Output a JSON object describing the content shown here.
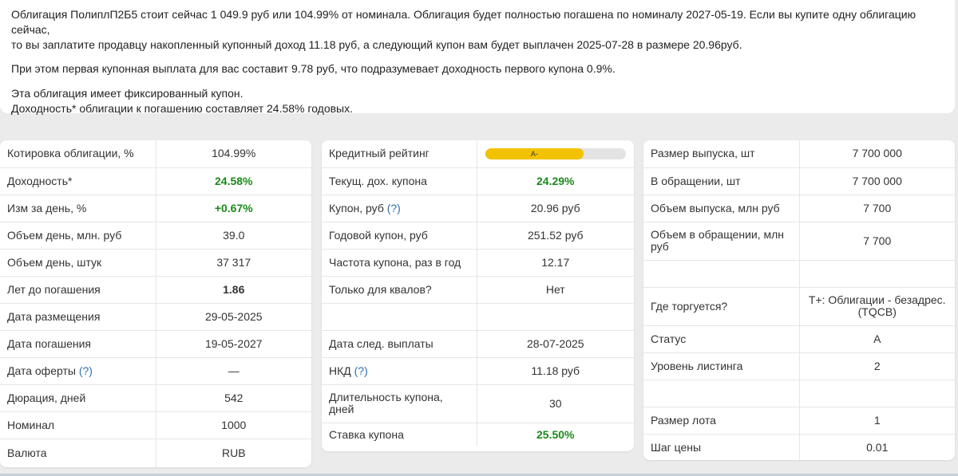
{
  "summary": {
    "line1": "Облигация ПолиплП2Б5 стоит сейчас 1 049.9 руб или 104.99% от номинала. Облигация будет полностью погашена по номиналу 2027-05-19. Если вы купите одну облигацию сейчас,",
    "line2": "то вы заплатите продавцу накопленный купонный доход 11.18 руб, а следующий купон вам будет выплачен 2025-07-28 в размере 20.96руб.",
    "line3": "При этом первая купонная выплата для вас составит 9.78 руб, что подразумевает доходность первого купона 0.9%.",
    "line4": "Эта облигация имеет фиксированный купон.",
    "line5": "Доходность* облигации к погашению составляет 24.58% годовых."
  },
  "colors": {
    "green": "#1a8a1a",
    "rating_fill": "#f2c200",
    "help_link": "#2f6fb0"
  },
  "help_mark": "(?)",
  "card1": [
    {
      "label": "Котировка облигации, %",
      "value": "104.99%",
      "style": ""
    },
    {
      "label": "Доходность*",
      "value": "24.58%",
      "style": "green"
    },
    {
      "label": "Изм за день, %",
      "value": "+0.67%",
      "style": "green"
    },
    {
      "label": "Объем день, млн. руб",
      "value": "39.0",
      "style": ""
    },
    {
      "label": "Объем день, штук",
      "value": "37 317",
      "style": ""
    },
    {
      "label": "Лет до погашения",
      "value": "1.86",
      "style": "bold"
    },
    {
      "label": "Дата размещения",
      "value": "29-05-2025",
      "style": ""
    },
    {
      "label": "Дата погашения",
      "value": "19-05-2027",
      "style": ""
    },
    {
      "label": "Дата оферты",
      "value": "—",
      "style": "",
      "help": true
    },
    {
      "label": "Дюрация, дней",
      "value": "542",
      "style": ""
    },
    {
      "label": "Номинал",
      "value": "1000",
      "style": ""
    },
    {
      "label": "Валюта",
      "value": "RUB",
      "style": ""
    }
  ],
  "card2": [
    {
      "label": "Кредитный рейтинг",
      "value": "A-",
      "rating": true,
      "rating_fill_fraction": 0.7
    },
    {
      "label": "Текущ. дох. купона",
      "value": "24.29%",
      "style": "green"
    },
    {
      "label": "Купон, руб",
      "value": "20.96 руб",
      "style": "",
      "help": true
    },
    {
      "label": "Годовой купон, руб",
      "value": "251.52 руб",
      "style": ""
    },
    {
      "label": "Частота купона, раз в год",
      "value": "12.17",
      "style": ""
    },
    {
      "label": "Только для квалов?",
      "value": "Нет",
      "style": ""
    },
    {
      "label": "",
      "value": "",
      "style": ""
    },
    {
      "label": "Дата след. выплаты",
      "value": "28-07-2025",
      "style": ""
    },
    {
      "label": "НКД",
      "value": "11.18 руб",
      "style": "",
      "help": true
    },
    {
      "label": "Длительность купона, дней",
      "value": "30",
      "style": ""
    },
    {
      "label": "Ставка купона",
      "value": "25.50%",
      "style": "green"
    }
  ],
  "card3": [
    {
      "label": "Размер выпуска, шт",
      "value": "7 700 000",
      "style": ""
    },
    {
      "label": "В обращении, шт",
      "value": "7 700 000",
      "style": ""
    },
    {
      "label": "Объем выпуска, млн руб",
      "value": "7 700",
      "style": ""
    },
    {
      "label": "Объем в обращении, млн руб",
      "value": "7 700",
      "style": ""
    },
    {
      "label": "",
      "value": "",
      "style": ""
    },
    {
      "label": "Где торгуется?",
      "value": "Т+: Облигации - безадрес. (TQCB)",
      "style": ""
    },
    {
      "label": "Статус",
      "value": "A",
      "style": ""
    },
    {
      "label": "Уровень листинга",
      "value": "2",
      "style": ""
    },
    {
      "label": "",
      "value": "",
      "style": ""
    },
    {
      "label": "Размер лота",
      "value": "1",
      "style": ""
    },
    {
      "label": "Шаг цены",
      "value": "0.01",
      "style": ""
    }
  ]
}
